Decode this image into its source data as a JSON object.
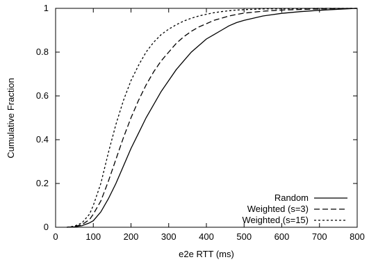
{
  "chart_data": {
    "type": "line",
    "title": "",
    "xlabel": "e2e RTT (ms)",
    "ylabel": "Cumulative Fraction",
    "xlim": [
      0,
      800
    ],
    "ylim": [
      0,
      1
    ],
    "xticks": [
      "0",
      "100",
      "200",
      "300",
      "400",
      "500",
      "600",
      "700",
      "800"
    ],
    "yticks": [
      "0",
      "0.2",
      "0.4",
      "0.6",
      "0.8",
      "1"
    ],
    "grid": false,
    "legend_position": "bottom-right",
    "series": [
      {
        "name": "Random",
        "style": "solid",
        "x": [
          30,
          50,
          70,
          90,
          100,
          120,
          140,
          160,
          180,
          200,
          220,
          240,
          260,
          280,
          300,
          320,
          340,
          360,
          380,
          400,
          420,
          440,
          460,
          480,
          500,
          550,
          600,
          650,
          700,
          750,
          800
        ],
        "y": [
          0.0,
          0.002,
          0.007,
          0.02,
          0.03,
          0.07,
          0.13,
          0.2,
          0.28,
          0.36,
          0.43,
          0.5,
          0.56,
          0.62,
          0.67,
          0.72,
          0.76,
          0.8,
          0.83,
          0.86,
          0.88,
          0.9,
          0.92,
          0.935,
          0.945,
          0.965,
          0.977,
          0.985,
          0.991,
          0.996,
          1.0
        ]
      },
      {
        "name": "Weighted (s=3)",
        "style": "dashed",
        "x": [
          30,
          50,
          70,
          90,
          100,
          120,
          140,
          160,
          180,
          200,
          220,
          240,
          260,
          280,
          300,
          320,
          340,
          360,
          380,
          400,
          420,
          440,
          460,
          480,
          500,
          550,
          600,
          650,
          700,
          750,
          800
        ],
        "y": [
          0.0,
          0.003,
          0.012,
          0.035,
          0.06,
          0.12,
          0.21,
          0.31,
          0.41,
          0.5,
          0.58,
          0.65,
          0.71,
          0.76,
          0.8,
          0.84,
          0.87,
          0.895,
          0.915,
          0.93,
          0.945,
          0.955,
          0.965,
          0.972,
          0.978,
          0.987,
          0.992,
          0.995,
          0.997,
          0.999,
          1.0
        ]
      },
      {
        "name": "Weighted (s=15)",
        "style": "dotted",
        "x": [
          30,
          50,
          70,
          90,
          100,
          120,
          140,
          160,
          180,
          200,
          220,
          240,
          260,
          280,
          300,
          320,
          340,
          360,
          380,
          400,
          420,
          440,
          460,
          480,
          500,
          550,
          600,
          650,
          700,
          750,
          800
        ],
        "y": [
          0.0,
          0.005,
          0.02,
          0.06,
          0.1,
          0.2,
          0.34,
          0.47,
          0.58,
          0.67,
          0.74,
          0.8,
          0.845,
          0.88,
          0.905,
          0.925,
          0.942,
          0.955,
          0.965,
          0.973,
          0.98,
          0.985,
          0.989,
          0.992,
          0.994,
          0.997,
          0.998,
          0.999,
          1.0,
          1.0,
          1.0
        ]
      }
    ]
  }
}
